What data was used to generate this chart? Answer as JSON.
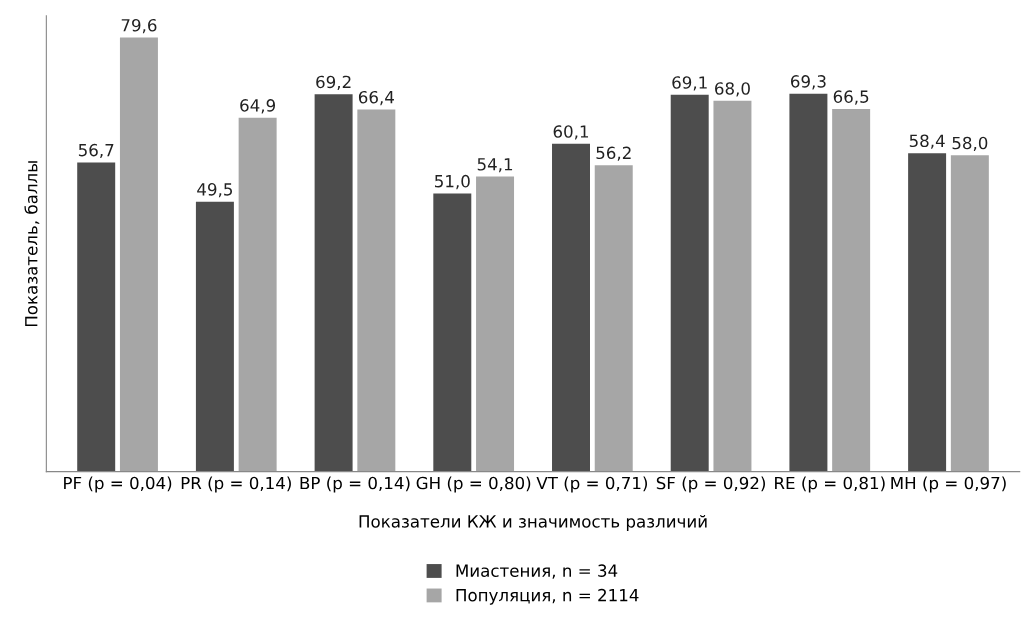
{
  "chart_data": {
    "type": "bar",
    "xlabel": "Показатели КЖ и значимость различий",
    "ylabel": "Показатель, баллы",
    "categories": [
      "PF (p = 0,04)",
      "PR (p = 0,14)",
      "BP (p = 0,14)",
      "GH (p = 0,80)",
      "VT (p = 0,71)",
      "SF (p = 0,92)",
      "RE (p = 0,81)",
      "MH (p = 0,97)"
    ],
    "series": [
      {
        "name": "Миастения, n = 34",
        "color": "#4d4d4d",
        "values": [
          56.7,
          49.5,
          69.2,
          51.0,
          60.1,
          69.1,
          69.3,
          58.4
        ],
        "value_labels": [
          "56,7",
          "49,5",
          "69,2",
          "51,0",
          "60,1",
          "69,1",
          "69,3",
          "58,4"
        ]
      },
      {
        "name": "Популяция, n = 2114",
        "color": "#a6a6a6",
        "values": [
          79.6,
          64.9,
          66.4,
          54.1,
          56.2,
          68.0,
          66.5,
          58.0
        ],
        "value_labels": [
          "79,6",
          "64,9",
          "66,4",
          "54,1",
          "56,2",
          "68,0",
          "66,5",
          "58,0"
        ]
      }
    ],
    "legend": "bottom",
    "tick_labels": "x",
    "grid": false
  }
}
